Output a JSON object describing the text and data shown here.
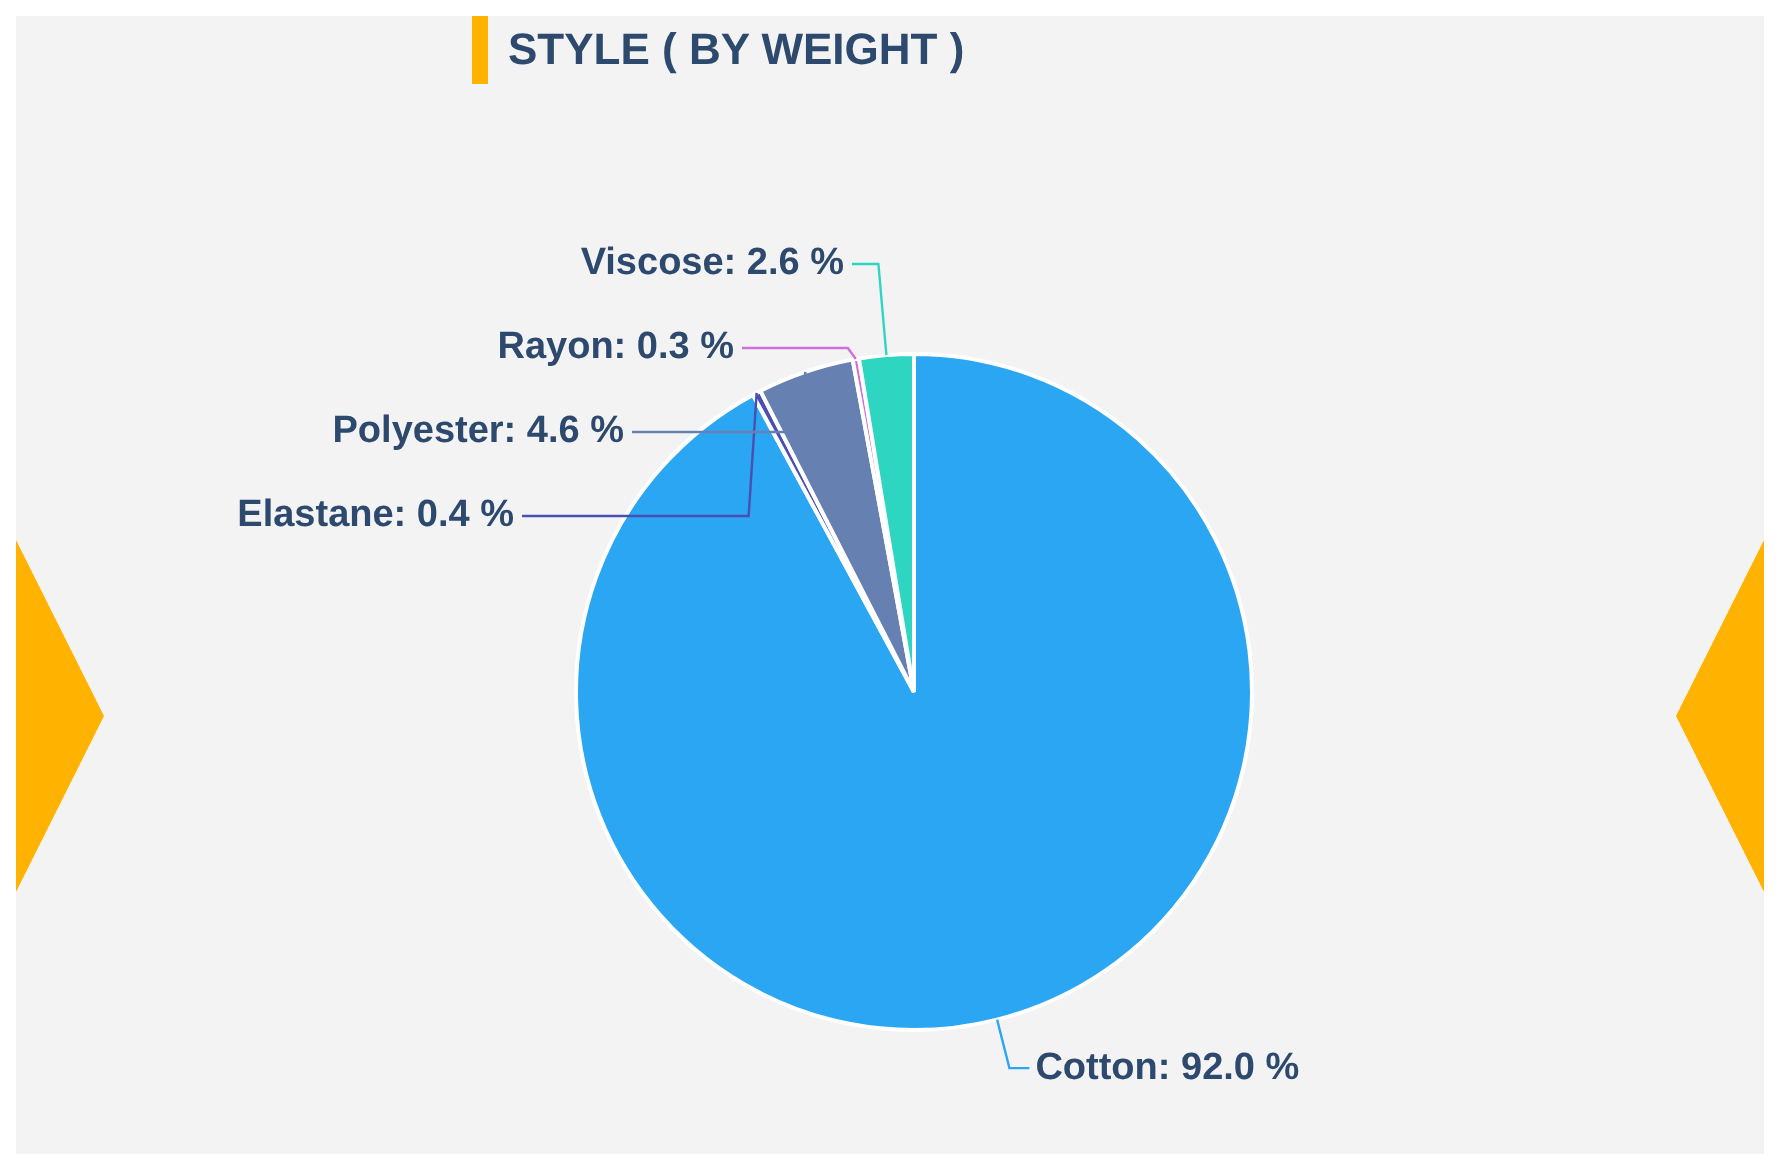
{
  "chart_data": {
    "type": "pie",
    "title": "STYLE ( BY WEIGHT )",
    "categories": [
      "Cotton",
      "Elastane",
      "Polyester",
      "Rayon",
      "Viscose"
    ],
    "values": [
      92.0,
      0.4,
      4.6,
      0.3,
      2.6
    ],
    "colors": [
      "#2ba6f2",
      "#4b4fb0",
      "#6680b2",
      "#cf6fdc",
      "#2ed6c2"
    ],
    "value_labels": [
      ": 92.0 %",
      ": 0.4 %",
      ": 4.6 %",
      ": 0.3 %",
      ": 2.6 %"
    ],
    "legend": false
  }
}
